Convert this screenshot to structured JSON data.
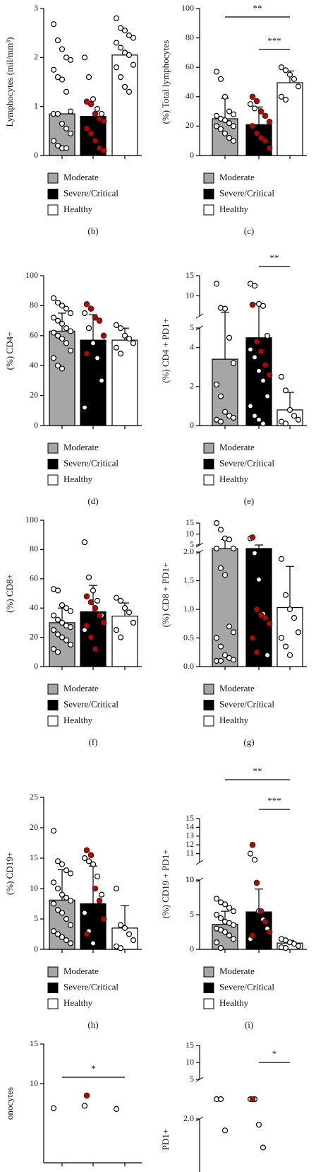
{
  "chart_data": [
    {
      "type": "bar",
      "ylabel": "Lymphocytes (mil/mm³)",
      "panel_label": "(b)",
      "legend": true,
      "segments": [
        {
          "ylim": [
            0,
            3
          ],
          "yticks": [
            0,
            1,
            2,
            3
          ]
        }
      ],
      "point_color": "#ffffff",
      "highlight_color": "#c00000",
      "series": [
        {
          "name": "Moderate",
          "color": "#a6a6a6",
          "mean": 0.85,
          "points": [
            2.68,
            2.35,
            2.17,
            2.0,
            1.95,
            1.75,
            1.6,
            1.55,
            1.3,
            0.9,
            0.85,
            0.85,
            0.65,
            0.55,
            0.45,
            0.3,
            0.2,
            0.15,
            0.15
          ]
        },
        {
          "name": "Severe/Critical",
          "color": "#000000",
          "mean": 0.8,
          "points": [
            2.0,
            1.6,
            1.15,
            0.95,
            0.85
          ],
          "highlight_points": [
            1.1,
            1.05,
            0.85,
            0.75,
            0.7,
            0.55,
            0.45,
            0.3,
            0.15,
            0.1
          ]
        },
        {
          "name": "Healthy",
          "color": "#ffffff",
          "mean": 2.05,
          "points": [
            2.8,
            2.6,
            2.55,
            2.45,
            2.4,
            2.3,
            2.2,
            2.1,
            2.05,
            1.85,
            1.8,
            1.6,
            1.4,
            1.3
          ]
        }
      ]
    },
    {
      "type": "bar",
      "ylabel": "(%) Total lymphocytes",
      "panel_label": "(c)",
      "legend": true,
      "segments": [
        {
          "ylim": [
            0,
            100
          ],
          "yticks": [
            0,
            20,
            40,
            60,
            80,
            100
          ]
        }
      ],
      "point_color": "#ffffff",
      "highlight_color": "#c00000",
      "significance": [
        {
          "from": 0,
          "to": 2,
          "label": "**"
        },
        {
          "from": 1,
          "to": 2,
          "label": "***"
        }
      ],
      "series": [
        {
          "name": "Moderate",
          "color": "#a6a6a6",
          "mean": 25,
          "error": 14,
          "points": [
            57,
            52,
            40,
            30,
            28,
            27,
            25,
            24,
            22,
            20,
            20,
            18,
            15,
            12,
            10
          ]
        },
        {
          "name": "Severe/Critical",
          "color": "#000000",
          "mean": 21,
          "error": 12,
          "points": [
            35,
            32
          ],
          "highlight_points": [
            40,
            37,
            30,
            27,
            23,
            20,
            15,
            12,
            10,
            5
          ]
        },
        {
          "name": "Healthy",
          "color": "#ffffff",
          "mean": 49.5,
          "error": 8,
          "points": [
            60,
            58,
            55,
            52,
            47,
            40,
            38
          ]
        }
      ]
    },
    {
      "type": "bar",
      "ylabel": "(%) CD4+",
      "panel_label": "(d)",
      "legend": true,
      "segments": [
        {
          "ylim": [
            0,
            100
          ],
          "yticks": [
            0,
            20,
            40,
            60,
            80,
            100
          ]
        }
      ],
      "point_color": "#ffffff",
      "highlight_color": "#c00000",
      "series": [
        {
          "name": "Moderate",
          "color": "#a6a6a6",
          "mean": 63,
          "error": 12,
          "points": [
            85,
            82,
            80,
            78,
            75,
            72,
            70,
            68,
            65,
            63,
            62,
            60,
            58,
            55,
            50,
            45,
            40,
            38
          ]
        },
        {
          "name": "Severe/Critical",
          "color": "#000000",
          "mean": 57,
          "error": 17,
          "points": [
            75,
            65,
            55,
            45,
            30,
            12
          ],
          "highlight_points": [
            81,
            78,
            72,
            70,
            60,
            48
          ]
        },
        {
          "name": "Healthy",
          "color": "#ffffff",
          "mean": 57,
          "error": 8,
          "points": [
            67,
            65,
            60,
            58,
            55,
            52,
            48
          ]
        }
      ]
    },
    {
      "type": "bar",
      "ylabel": "(%) CD4 + PD1+",
      "panel_label": "(e)",
      "legend": true,
      "segments": [
        {
          "ylim": [
            0,
            5
          ],
          "yticks": [
            0,
            2,
            4
          ]
        },
        {
          "ylim": [
            5,
            15
          ],
          "yticks": [
            5,
            10,
            15
          ]
        }
      ],
      "point_color": "#ffffff",
      "highlight_color": "#c00000",
      "significance": [
        {
          "from": 1,
          "to": 2,
          "label": "**"
        }
      ],
      "series": [
        {
          "name": "Moderate",
          "color": "#a6a6a6",
          "mean": 3.4,
          "error": 2.5,
          "points": [
            13,
            7,
            6.8,
            4.5,
            3.2,
            2.1,
            1.5,
            0.7,
            0.5,
            0.4,
            0.3,
            0.2
          ]
        },
        {
          "name": "Severe/Critical",
          "color": "#000000",
          "mean": 4.5,
          "error": 3.5,
          "points": [
            13,
            12.5,
            8,
            7.5,
            4.6,
            3.9,
            3.5,
            2.8,
            2.3,
            1.5,
            1.0,
            0.5,
            0.3,
            0.1
          ],
          "highlight_points": [
            7.8,
            4.3,
            3.8,
            3.1,
            2.6
          ]
        },
        {
          "name": "Healthy",
          "color": "#ffffff",
          "mean": 0.8,
          "error": 0.9,
          "points": [
            2.5,
            1.8,
            0.8,
            0.5,
            0.3,
            0.2,
            0.1
          ]
        }
      ]
    },
    {
      "type": "bar",
      "ylabel": "(%) CD8+",
      "panel_label": "(f)",
      "legend": true,
      "segments": [
        {
          "ylim": [
            0,
            100
          ],
          "yticks": [
            0,
            20,
            40,
            60,
            80,
            100
          ]
        }
      ],
      "point_color": "#ffffff",
      "highlight_color": "#c00000",
      "series": [
        {
          "name": "Moderate",
          "color": "#a6a6a6",
          "mean": 30,
          "error": 10,
          "points": [
            53,
            52,
            42,
            40,
            38,
            35,
            32,
            30,
            28,
            27,
            25,
            22,
            20,
            18,
            15,
            12,
            10
          ]
        },
        {
          "name": "Severe/Critical",
          "color": "#000000",
          "mean": 37.5,
          "error": 18,
          "points": [
            85,
            61,
            52,
            45,
            35,
            25
          ],
          "highlight_points": [
            48,
            44,
            40,
            35,
            30,
            28,
            20,
            12
          ]
        },
        {
          "name": "Healthy",
          "color": "#ffffff",
          "mean": 34.5,
          "error": 9,
          "points": [
            47,
            45,
            40,
            37,
            30,
            25,
            20
          ]
        }
      ]
    },
    {
      "type": "bar",
      "ylabel": "(%) CD8 + PD1+",
      "panel_label": "(g)",
      "legend": true,
      "segments": [
        {
          "ylim": [
            0,
            2
          ],
          "yticks": [
            {
              "value": 0,
              "label": "0.0"
            },
            {
              "value": 0.5,
              "label": "0.5"
            },
            {
              "value": 1,
              "label": "1.0"
            },
            {
              "value": 1.5,
              "label": "1.5"
            },
            {
              "value": 2,
              "label": "2.0"
            }
          ]
        },
        {
          "ylim": [
            5,
            15
          ],
          "yticks": [
            5,
            10,
            15
          ]
        }
      ],
      "point_color": "#ffffff",
      "highlight_color": "#c00000",
      "series": [
        {
          "name": "Moderate",
          "color": "#a6a6a6",
          "mean": 3.5,
          "error": 4,
          "points": [
            15,
            12,
            8,
            7.5,
            3.8,
            3.5,
            1.72,
            1.6,
            0.7,
            0.6,
            0.5,
            0.35,
            0.2,
            0.15,
            0.12,
            0.1,
            0.1
          ]
        },
        {
          "name": "Severe/Critical",
          "color": "#000000",
          "mean": 3,
          "error": 2,
          "points": [
            8,
            1.98,
            1.52,
            0.92,
            0.2
          ],
          "highlight_points": [
            8.5,
            1.0,
            0.9,
            0.85,
            0.75,
            0.5,
            0.25
          ]
        },
        {
          "name": "Healthy",
          "color": "#ffffff",
          "mean": 1.03,
          "error": 0.72,
          "points": [
            1.88,
            1.25,
            1.0,
            0.85,
            0.6,
            0.5,
            0.35,
            0.2
          ]
        }
      ]
    },
    {
      "type": "bar",
      "ylabel": "(%) CD19+",
      "panel_label": "(h)",
      "legend": true,
      "segments": [
        {
          "ylim": [
            0,
            25
          ],
          "yticks": [
            0,
            5,
            10,
            15,
            20,
            25
          ]
        }
      ],
      "point_color": "#ffffff",
      "highlight_color": "#c00000",
      "series": [
        {
          "name": "Moderate",
          "color": "#a6a6a6",
          "mean": 8.1,
          "error": 5,
          "points": [
            19.5,
            14.5,
            14,
            13,
            12.5,
            11,
            10,
            9,
            8.5,
            8,
            7.5,
            6.5,
            6,
            5,
            4,
            3,
            2.5,
            2,
            1.5,
            1
          ]
        },
        {
          "name": "Severe/Critical",
          "color": "#000000",
          "mean": 7.5,
          "error": 6.2,
          "points": [
            15,
            14.5,
            14,
            12,
            9,
            6,
            3,
            1
          ],
          "highlight_points": [
            16.3,
            15.5,
            10,
            8,
            5,
            2.5
          ]
        },
        {
          "name": "Healthy",
          "color": "#ffffff",
          "mean": 3.5,
          "error": 3.7,
          "points": [
            10,
            4,
            3.5,
            2.5,
            1.5,
            0.5,
            0.2
          ]
        }
      ]
    },
    {
      "type": "bar",
      "ylabel": "(%) CD19 + PD1+",
      "panel_label": "(i)",
      "legend": true,
      "segments": [
        {
          "ylim": [
            0,
            10
          ],
          "yticks": [
            0,
            5,
            10
          ]
        },
        {
          "ylim": [
            10,
            15
          ],
          "yticks": [
            10,
            11,
            12,
            13,
            14,
            15
          ]
        }
      ],
      "point_color": "#ffffff",
      "highlight_color": "#c00000",
      "significance": [
        {
          "from": 0,
          "to": 2,
          "label": "**"
        },
        {
          "from": 1,
          "to": 2,
          "label": "***"
        }
      ],
      "series": [
        {
          "name": "Moderate",
          "color": "#a6a6a6",
          "mean": 3.6,
          "error": 1.9,
          "points": [
            7.3,
            6.8,
            6.5,
            6,
            5.5,
            5,
            4.5,
            4,
            3.8,
            3.5,
            3,
            2.8,
            2.5,
            2,
            1.5,
            1,
            0.2
          ]
        },
        {
          "name": "Severe/Critical",
          "color": "#000000",
          "mean": 5.4,
          "error": 3.3,
          "points": [
            11,
            10.3,
            5.5,
            4.3,
            3,
            1.5
          ],
          "highlight_points": [
            12,
            9.6,
            5.5,
            4,
            2.5,
            2
          ]
        },
        {
          "name": "Healthy",
          "color": "#ffffff",
          "mean": 0.9,
          "error": 0.4,
          "points": [
            1.5,
            1.3,
            1,
            0.8,
            0.5,
            0.3,
            0.2
          ]
        }
      ]
    },
    {
      "type": "bar",
      "ylabel": "onocytes",
      "legend": false,
      "segments": [
        {
          "ylim": [
            0,
            15
          ],
          "yticks": [
            10,
            15
          ]
        }
      ],
      "point_color": "#ffffff",
      "highlight_color": "#c00000",
      "significance": [
        {
          "from": 0,
          "to": 2,
          "label": "*"
        }
      ],
      "series": [
        {
          "color": "#a6a6a6",
          "points": [
            6.9
          ]
        },
        {
          "color": "#000000",
          "points": [
            7.2
          ],
          "highlight_points": [
            8.5
          ]
        },
        {
          "color": "#ffffff",
          "points": [
            6.8
          ]
        }
      ]
    },
    {
      "type": "bar",
      "ylabel": "PD1+",
      "legend": false,
      "segments": [
        {
          "ylim": [
            0,
            2
          ],
          "yticks": [
            {
              "value": 2,
              "label": "2.0"
            }
          ]
        },
        {
          "ylim": [
            5,
            15
          ],
          "yticks": [
            5,
            10,
            15
          ]
        }
      ],
      "point_color": "#ffffff",
      "highlight_color": "#c00000",
      "significance": [
        {
          "from": 1,
          "to": 2,
          "label": "*"
        }
      ],
      "series": [
        {
          "color": "#a6a6a6",
          "points": [
            3.5,
            2.8,
            1.8
          ]
        },
        {
          "color": "#000000",
          "points": [
            3.4,
            3.8,
            1.9,
            1.5
          ],
          "highlight_points": [
            3.3
          ]
        },
        {
          "color": "#ffffff",
          "points": []
        }
      ]
    }
  ]
}
